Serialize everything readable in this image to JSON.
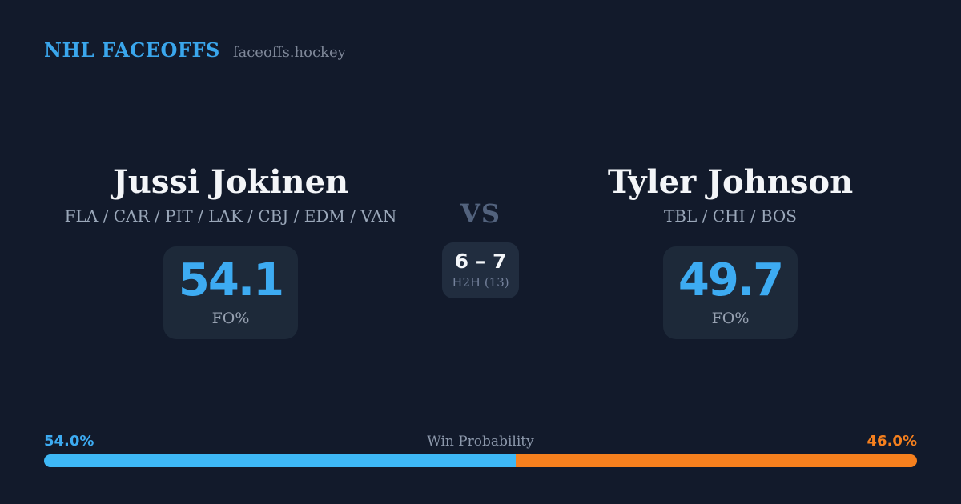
{
  "header": {
    "title": "NHL FACEOFFS",
    "site": "faceoffs.hockey"
  },
  "players": {
    "left": {
      "name": "Jussi Jokinen",
      "teams": "FLA / CAR / PIT / LAK / CBJ / EDM / VAN",
      "fo_pct": "54.1",
      "stat_label": "FO%"
    },
    "right": {
      "name": "Tyler Johnson",
      "teams": "TBL / CHI / BOS",
      "fo_pct": "49.7",
      "stat_label": "FO%"
    }
  },
  "versus": {
    "label": "VS",
    "h2h_score": "6 – 7",
    "h2h_label": "H2H (13)"
  },
  "win_probability": {
    "title": "Win Probability",
    "left_label": "54.0%",
    "right_label": "46.0%",
    "left_pct": 54,
    "right_pct": 46
  },
  "colors": {
    "background": "#121a2b",
    "card": "#1d2939",
    "accent_blue": "#3dabf2",
    "bar_blue": "#3eb8f6",
    "accent_orange": "#f6801e",
    "muted_text": "#8c98ab"
  }
}
